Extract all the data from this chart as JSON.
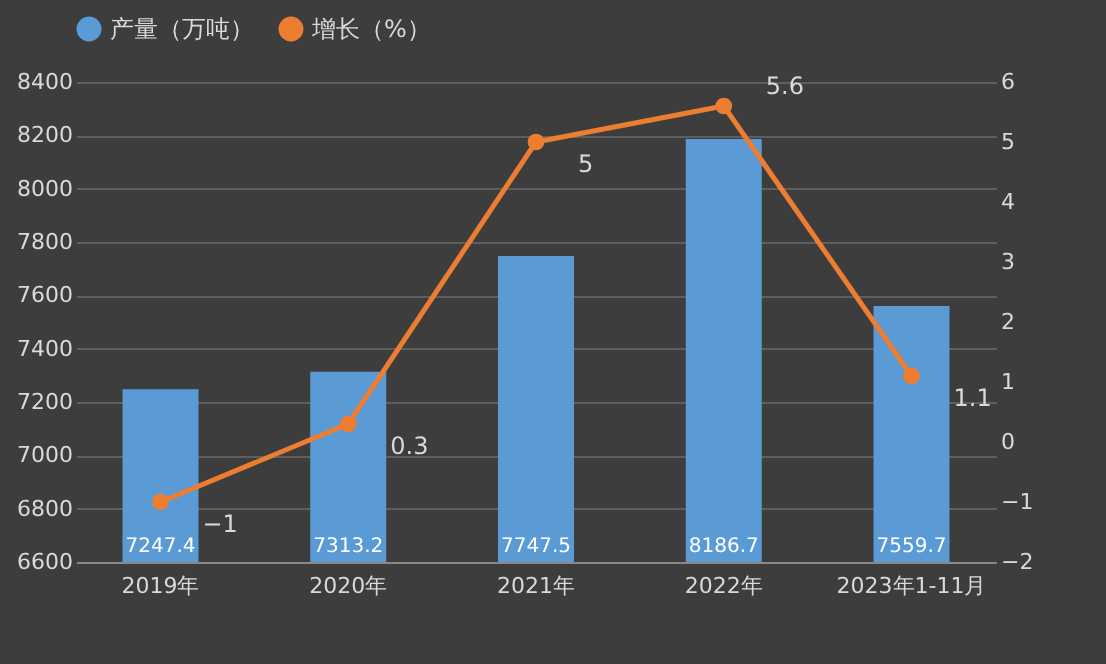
{
  "chart_data": {
    "type": "bar",
    "categories": [
      "2019年",
      "2020年",
      "2021年",
      "2022年",
      "2023年1-11月"
    ],
    "series": [
      {
        "name": "产量（万吨）",
        "type": "bar",
        "color": "#5b9bd5",
        "values": [
          7247.4,
          7313.2,
          7747.5,
          8186.7,
          7559.7
        ]
      },
      {
        "name": "增长（%）",
        "type": "line",
        "axis": "y2",
        "color": "#ed7d31",
        "values": [
          -1,
          0.3,
          5,
          5.6,
          1.1
        ]
      }
    ],
    "ylim": [
      6600,
      8400
    ],
    "yticks": [
      6600,
      6800,
      7000,
      7200,
      7400,
      7600,
      7800,
      8000,
      8200,
      8400
    ],
    "y2lim": [
      -2,
      6
    ],
    "y2ticks": [
      -2,
      -1,
      0,
      1,
      2,
      3,
      4,
      5,
      6
    ],
    "grid": "y",
    "legend": "top",
    "marker": "circle",
    "data_labels": true
  }
}
